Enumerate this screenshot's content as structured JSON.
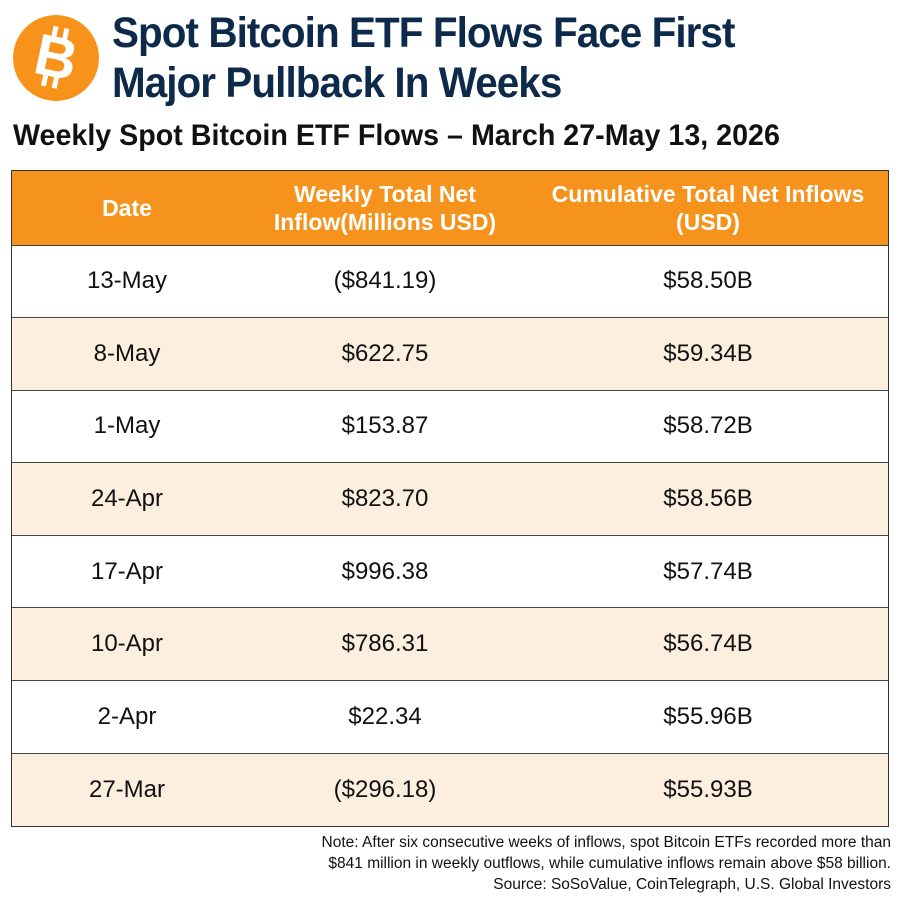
{
  "header": {
    "logo_icon": "bitcoin-icon",
    "title": "Spot Bitcoin ETF Flows Face First Major Pullback In Weeks",
    "subtitle": "Weekly Spot Bitcoin ETF Flows – March 27-May 13, 2026"
  },
  "colors": {
    "accent_orange": "#f5931d",
    "title_navy": "#0e2a4b",
    "stripe": "#fdefe0"
  },
  "chart_data": {
    "type": "table",
    "columns": [
      "Date",
      "Weekly Total Net Inflow(Millions USD)",
      "Cumulative Total Net Inflows (USD)"
    ],
    "rows": [
      [
        "13-May",
        "($841.19)",
        "$58.50B"
      ],
      [
        "8-May",
        "$622.75",
        "$59.34B"
      ],
      [
        "1-May",
        "$153.87",
        "$58.72B"
      ],
      [
        "24-Apr",
        "$823.70",
        "$58.56B"
      ],
      [
        "17-Apr",
        "$996.38",
        "$57.74B"
      ],
      [
        "10-Apr",
        "$786.31",
        "$56.74B"
      ],
      [
        "2-Apr",
        "$22.34",
        "$55.96B"
      ],
      [
        "27-Mar",
        "($296.18)",
        "$55.93B"
      ]
    ]
  },
  "footer": {
    "note_line1": "Note: After six consecutive weeks of inflows, spot Bitcoin ETFs recorded more than",
    "note_line2": "$841 million in weekly outflows, while cumulative inflows remain above $58 billion.",
    "source": "Source: SoSoValue, CoinTelegraph, U.S. Global Investors"
  }
}
